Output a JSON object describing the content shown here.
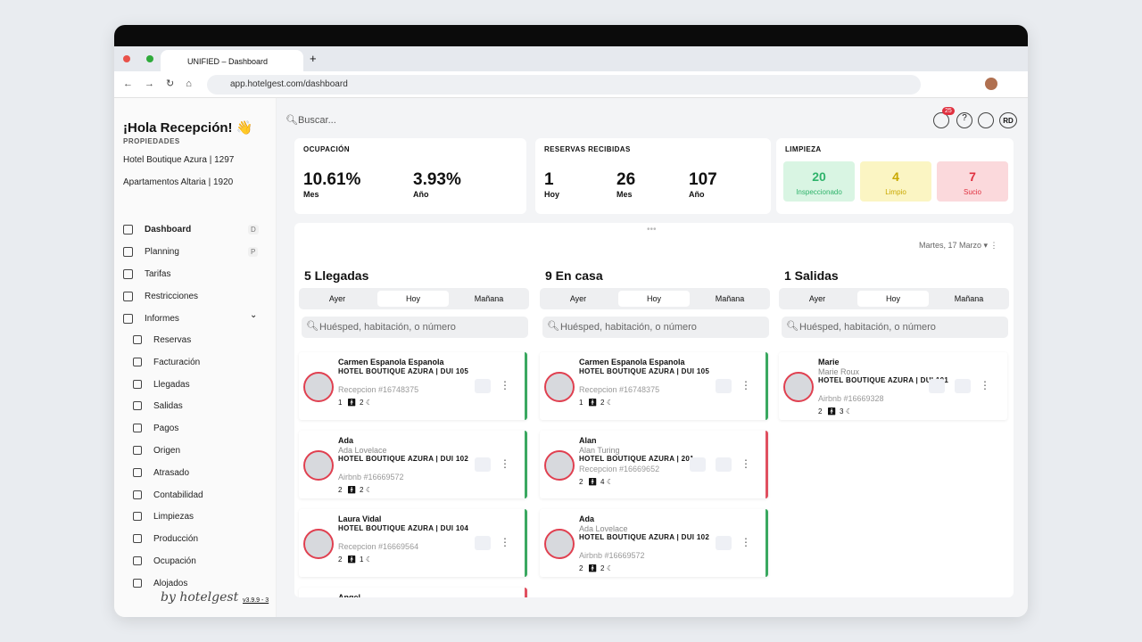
{
  "browser": {
    "tab_title": "UNIFIED – Dashboard",
    "url": "app.hotelgest.com/dashboard"
  },
  "sidebar": {
    "greeting": "¡Hola Recepción! 👋",
    "properties_label": "PROPIEDADES",
    "properties": [
      "Hotel Boutique Azura | 1297",
      "Apartamentos Altaria | 1920"
    ],
    "nav": [
      {
        "label": "Dashboard",
        "shortcut": "D"
      },
      {
        "label": "Planning",
        "shortcut": "P"
      },
      {
        "label": "Tarifas"
      },
      {
        "label": "Restricciones"
      },
      {
        "label": "Informes"
      }
    ],
    "subnav": [
      "Reservas",
      "Facturación",
      "Llegadas",
      "Salidas",
      "Pagos",
      "Origen",
      "Atrasado",
      "Contabilidad",
      "Limpiezas",
      "Producción",
      "Ocupación",
      "Alojados"
    ],
    "brand": "by hotelgest",
    "version": "v3.9.9 - 3"
  },
  "topbar": {
    "search": "Buscar...",
    "notifications": "25",
    "avatar": "RD"
  },
  "stats": [
    {
      "title": "OCUPACIÓN",
      "items": [
        {
          "value": "10.61%",
          "label": "Mes"
        },
        {
          "value": "3.93%",
          "label": "Año"
        }
      ]
    },
    {
      "title": "RESERVAS RECIBIDAS",
      "items": [
        {
          "value": 1,
          "label": "Hoy"
        },
        {
          "value": 26,
          "label": "Mes"
        },
        {
          "value": 107,
          "label": "Año"
        }
      ]
    },
    {
      "title": "LIMPIEZA",
      "items": [
        {
          "value": 20,
          "label": "Inspeccionado",
          "color": "#2fb36b",
          "bg": "#d9f5e3"
        },
        {
          "value": 4,
          "label": "Limpio",
          "color": "#c9a800",
          "bg": "#fbf5c3"
        },
        {
          "value": 7,
          "label": "Sucio",
          "color": "#e0303f",
          "bg": "#fbd9dc"
        }
      ]
    }
  ],
  "date": "Martes, 17 Marzo",
  "columns": [
    {
      "title": "5 Llegadas",
      "tabs": [
        "Ayer",
        "Hoy",
        "Mañana"
      ],
      "search": "Huésped, habitación, o número",
      "cards": [
        {
          "name": "Carmen Espanola Espanola",
          "property": "HOTEL BOUTIQUE AZURA | DUI 105",
          "ref": "Recepcion #16748375",
          "guests": 1,
          "nights": 2,
          "accent": "#3aa860"
        },
        {
          "name": "Ada",
          "subname": "Ada Lovelace",
          "property": "HOTEL BOUTIQUE AZURA | DUI 102",
          "ref": "Airbnb #16669572",
          "guests": 2,
          "nights": 2,
          "accent": "#3aa860"
        },
        {
          "name": "Laura Vidal",
          "property": "HOTEL BOUTIQUE AZURA | DUI 104",
          "ref": "Recepcion #16669564",
          "guests": 2,
          "nights": 1,
          "accent": "#3aa860"
        },
        {
          "name": "Angel",
          "accent": "#e05060"
        }
      ]
    },
    {
      "title": "9 En casa",
      "tabs": [
        "Ayer",
        "Hoy",
        "Mañana"
      ],
      "search": "Huésped, habitación, o número",
      "cards": [
        {
          "name": "Carmen Espanola Espanola",
          "property": "HOTEL BOUTIQUE AZURA | DUI 105",
          "ref": "Recepcion #16748375",
          "guests": 1,
          "nights": 2,
          "accent": "#3aa860"
        },
        {
          "name": "Alan",
          "subname": "Alan Turing",
          "property": "HOTEL BOUTIQUE AZURA | 201",
          "ref": "Recepcion #16669652",
          "guests": 2,
          "nights": 4,
          "accent": "#e05060"
        },
        {
          "name": "Ada",
          "subname": "Ada Lovelace",
          "property": "HOTEL BOUTIQUE AZURA | DUI 102",
          "ref": "Airbnb #16669572",
          "guests": 2,
          "nights": 2,
          "accent": "#3aa860"
        }
      ]
    },
    {
      "title": "1 Salidas",
      "tabs": [
        "Ayer",
        "Hoy",
        "Mañana"
      ],
      "search": "Huésped, habitación, o número",
      "cards": [
        {
          "name": "Marie",
          "subname": "Marie Roux",
          "property": "HOTEL BOUTIQUE AZURA | DUI 101",
          "ref": "Airbnb #16669328",
          "guests": 2,
          "nights": 3
        }
      ]
    }
  ]
}
